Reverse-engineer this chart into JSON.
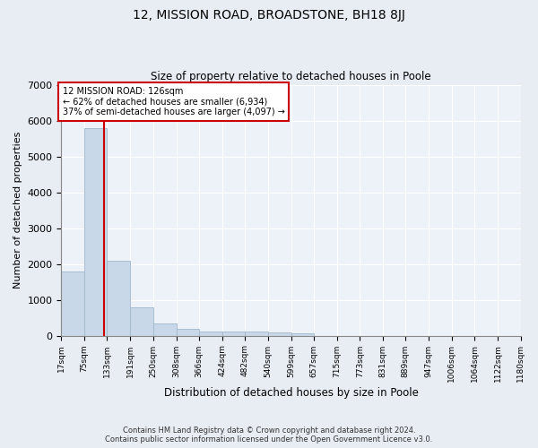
{
  "title": "12, MISSION ROAD, BROADSTONE, BH18 8JJ",
  "subtitle": "Size of property relative to detached houses in Poole",
  "xlabel": "Distribution of detached houses by size in Poole",
  "ylabel": "Number of detached properties",
  "bar_color": "#c8d8e8",
  "bar_edge_color": "#a0b8cc",
  "property_sqm": 126,
  "property_label": "12 MISSION ROAD: 126sqm",
  "annotation_line1": "← 62% of detached houses are smaller (6,934)",
  "annotation_line2": "37% of semi-detached houses are larger (4,097) →",
  "vline_color": "#cc0000",
  "annotation_box_color": "#ffffff",
  "annotation_box_edge": "#cc0000",
  "bin_edges": [
    17,
    75,
    133,
    191,
    250,
    308,
    366,
    424,
    482,
    540,
    599,
    657,
    715,
    773,
    831,
    889,
    947,
    1006,
    1064,
    1122,
    1180
  ],
  "bin_counts": [
    1780,
    5780,
    2080,
    800,
    340,
    195,
    120,
    110,
    105,
    80,
    75,
    0,
    0,
    0,
    0,
    0,
    0,
    0,
    0,
    0
  ],
  "ylim": [
    0,
    7000
  ],
  "yticks": [
    0,
    1000,
    2000,
    3000,
    4000,
    5000,
    6000,
    7000
  ],
  "footer_line1": "Contains HM Land Registry data © Crown copyright and database right 2024.",
  "footer_line2": "Contains public sector information licensed under the Open Government Licence v3.0.",
  "bg_color": "#e8edf4",
  "plot_bg_color": "#edf1f8"
}
